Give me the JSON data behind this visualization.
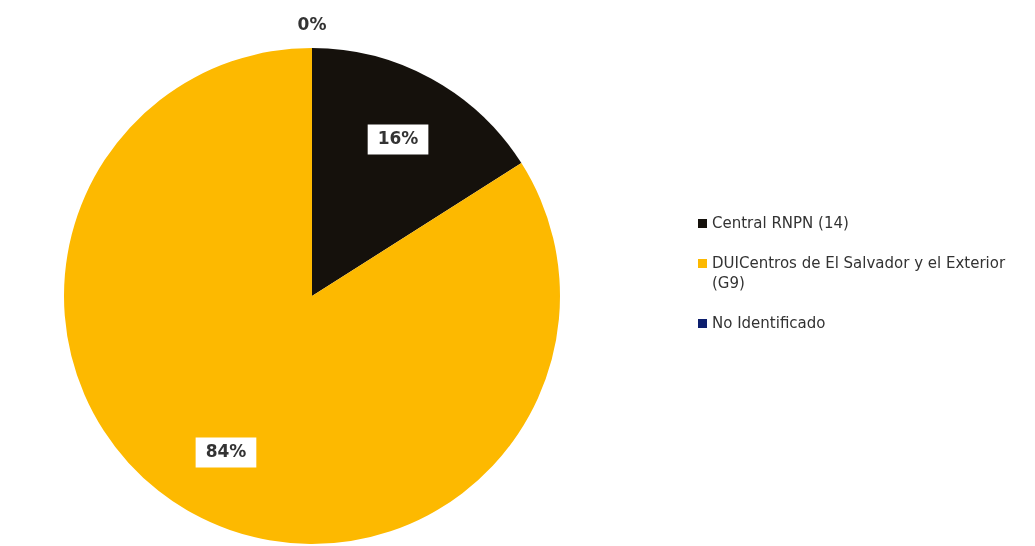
{
  "chart_data": {
    "type": "pie",
    "categories": [
      "Central RNPN (14)",
      "DUICentros de El Salvador y el Exterior (G9)",
      "No Identificado"
    ],
    "values": [
      16,
      84,
      0
    ],
    "colors": [
      "#15110c",
      "#fdb900",
      "#0d1f6e"
    ],
    "value_labels": [
      "16%",
      "84%",
      "0%"
    ],
    "legend": "right"
  }
}
